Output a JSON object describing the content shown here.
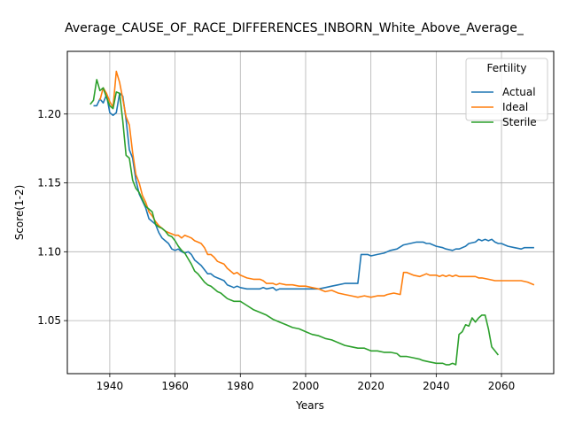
{
  "chart_data": {
    "type": "line",
    "title": "Average_CAUSE_OF_RACE_DIFFERENCES_INBORN_White_Above_Average_",
    "xlabel": "Years",
    "ylabel": "Score(1-2)",
    "xlim": [
      1927,
      2076
    ],
    "ylim": [
      1.0115,
      1.2455
    ],
    "xticks": [
      1940,
      1960,
      1980,
      2000,
      2020,
      2040,
      2060
    ],
    "yticks": [
      1.05,
      1.1,
      1.15,
      1.2
    ],
    "xtick_labels": [
      "1940",
      "1960",
      "1980",
      "2000",
      "2020",
      "2040",
      "2060"
    ],
    "ytick_labels": [
      "1.05",
      "1.10",
      "1.15",
      "1.20"
    ],
    "grid": true,
    "legend": {
      "title": "Fertility",
      "placement": "top-right"
    },
    "series": [
      {
        "name": "Actual",
        "color": "#1f77b4",
        "points": [
          [
            1935,
            1.206
          ],
          [
            1936,
            1.206
          ],
          [
            1937,
            1.211
          ],
          [
            1938,
            1.208
          ],
          [
            1939,
            1.214
          ],
          [
            1940,
            1.201
          ],
          [
            1941,
            1.199
          ],
          [
            1942,
            1.201
          ],
          [
            1943,
            1.215
          ],
          [
            1944,
            1.213
          ],
          [
            1945,
            1.196
          ],
          [
            1946,
            1.174
          ],
          [
            1947,
            1.168
          ],
          [
            1948,
            1.152
          ],
          [
            1949,
            1.142
          ],
          [
            1950,
            1.137
          ],
          [
            1951,
            1.132
          ],
          [
            1952,
            1.124
          ],
          [
            1953,
            1.122
          ],
          [
            1954,
            1.12
          ],
          [
            1955,
            1.114
          ],
          [
            1956,
            1.11
          ],
          [
            1957,
            1.108
          ],
          [
            1958,
            1.106
          ],
          [
            1959,
            1.102
          ],
          [
            1960,
            1.101
          ],
          [
            1961,
            1.102
          ],
          [
            1962,
            1.1
          ],
          [
            1963,
            1.099
          ],
          [
            1964,
            1.1
          ],
          [
            1965,
            1.098
          ],
          [
            1966,
            1.094
          ],
          [
            1967,
            1.092
          ],
          [
            1968,
            1.09
          ],
          [
            1969,
            1.087
          ],
          [
            1970,
            1.084
          ],
          [
            1971,
            1.084
          ],
          [
            1972,
            1.082
          ],
          [
            1973,
            1.081
          ],
          [
            1974,
            1.08
          ],
          [
            1975,
            1.079
          ],
          [
            1976,
            1.076
          ],
          [
            1977,
            1.075
          ],
          [
            1978,
            1.074
          ],
          [
            1979,
            1.075
          ],
          [
            1980,
            1.074
          ],
          [
            1982,
            1.073
          ],
          [
            1984,
            1.073
          ],
          [
            1986,
            1.073
          ],
          [
            1987,
            1.074
          ],
          [
            1988,
            1.073
          ],
          [
            1990,
            1.074
          ],
          [
            1991,
            1.072
          ],
          [
            1992,
            1.073
          ],
          [
            1994,
            1.073
          ],
          [
            1996,
            1.073
          ],
          [
            1998,
            1.073
          ],
          [
            2000,
            1.073
          ],
          [
            2002,
            1.073
          ],
          [
            2004,
            1.073
          ],
          [
            2006,
            1.074
          ],
          [
            2008,
            1.075
          ],
          [
            2010,
            1.076
          ],
          [
            2012,
            1.077
          ],
          [
            2014,
            1.077
          ],
          [
            2016,
            1.077
          ],
          [
            2017,
            1.098
          ],
          [
            2019,
            1.098
          ],
          [
            2020,
            1.097
          ],
          [
            2022,
            1.098
          ],
          [
            2024,
            1.099
          ],
          [
            2026,
            1.101
          ],
          [
            2028,
            1.102
          ],
          [
            2030,
            1.105
          ],
          [
            2032,
            1.106
          ],
          [
            2034,
            1.107
          ],
          [
            2036,
            1.107
          ],
          [
            2037,
            1.106
          ],
          [
            2038,
            1.106
          ],
          [
            2040,
            1.104
          ],
          [
            2042,
            1.103
          ],
          [
            2043,
            1.102
          ],
          [
            2045,
            1.101
          ],
          [
            2046,
            1.102
          ],
          [
            2047,
            1.102
          ],
          [
            2048,
            1.103
          ],
          [
            2049,
            1.104
          ],
          [
            2050,
            1.106
          ],
          [
            2052,
            1.107
          ],
          [
            2053,
            1.109
          ],
          [
            2054,
            1.108
          ],
          [
            2055,
            1.109
          ],
          [
            2056,
            1.108
          ],
          [
            2057,
            1.109
          ],
          [
            2058,
            1.107
          ],
          [
            2059,
            1.106
          ],
          [
            2060,
            1.106
          ],
          [
            2061,
            1.105
          ],
          [
            2062,
            1.104
          ],
          [
            2064,
            1.103
          ],
          [
            2066,
            1.102
          ],
          [
            2067,
            1.103
          ],
          [
            2068,
            1.103
          ],
          [
            2070,
            1.103
          ]
        ]
      },
      {
        "name": "Ideal",
        "color": "#ff7f0e",
        "points": [
          [
            1937,
            1.21
          ],
          [
            1938,
            1.219
          ],
          [
            1939,
            1.215
          ],
          [
            1940,
            1.209
          ],
          [
            1941,
            1.205
          ],
          [
            1942,
            1.231
          ],
          [
            1943,
            1.223
          ],
          [
            1944,
            1.211
          ],
          [
            1945,
            1.198
          ],
          [
            1946,
            1.192
          ],
          [
            1947,
            1.172
          ],
          [
            1948,
            1.156
          ],
          [
            1949,
            1.15
          ],
          [
            1950,
            1.141
          ],
          [
            1951,
            1.136
          ],
          [
            1952,
            1.129
          ],
          [
            1953,
            1.126
          ],
          [
            1954,
            1.122
          ],
          [
            1955,
            1.119
          ],
          [
            1956,
            1.117
          ],
          [
            1957,
            1.115
          ],
          [
            1958,
            1.114
          ],
          [
            1959,
            1.113
          ],
          [
            1960,
            1.112
          ],
          [
            1961,
            1.112
          ],
          [
            1962,
            1.11
          ],
          [
            1963,
            1.112
          ],
          [
            1964,
            1.111
          ],
          [
            1965,
            1.11
          ],
          [
            1966,
            1.108
          ],
          [
            1967,
            1.107
          ],
          [
            1968,
            1.106
          ],
          [
            1969,
            1.103
          ],
          [
            1970,
            1.098
          ],
          [
            1971,
            1.098
          ],
          [
            1972,
            1.096
          ],
          [
            1973,
            1.093
          ],
          [
            1974,
            1.092
          ],
          [
            1975,
            1.091
          ],
          [
            1976,
            1.088
          ],
          [
            1977,
            1.086
          ],
          [
            1978,
            1.084
          ],
          [
            1979,
            1.085
          ],
          [
            1980,
            1.083
          ],
          [
            1982,
            1.081
          ],
          [
            1984,
            1.08
          ],
          [
            1986,
            1.08
          ],
          [
            1987,
            1.079
          ],
          [
            1988,
            1.077
          ],
          [
            1990,
            1.077
          ],
          [
            1991,
            1.076
          ],
          [
            1992,
            1.077
          ],
          [
            1994,
            1.076
          ],
          [
            1996,
            1.076
          ],
          [
            1998,
            1.075
          ],
          [
            2000,
            1.075
          ],
          [
            2002,
            1.074
          ],
          [
            2004,
            1.073
          ],
          [
            2006,
            1.071
          ],
          [
            2008,
            1.072
          ],
          [
            2010,
            1.07
          ],
          [
            2012,
            1.069
          ],
          [
            2014,
            1.068
          ],
          [
            2016,
            1.067
          ],
          [
            2018,
            1.068
          ],
          [
            2020,
            1.067
          ],
          [
            2022,
            1.068
          ],
          [
            2024,
            1.068
          ],
          [
            2025,
            1.069
          ],
          [
            2027,
            1.07
          ],
          [
            2029,
            1.069
          ],
          [
            2030,
            1.085
          ],
          [
            2031,
            1.085
          ],
          [
            2033,
            1.083
          ],
          [
            2035,
            1.082
          ],
          [
            2036,
            1.083
          ],
          [
            2037,
            1.084
          ],
          [
            2038,
            1.083
          ],
          [
            2039,
            1.083
          ],
          [
            2040,
            1.083
          ],
          [
            2041,
            1.082
          ],
          [
            2042,
            1.083
          ],
          [
            2043,
            1.082
          ],
          [
            2044,
            1.083
          ],
          [
            2045,
            1.082
          ],
          [
            2046,
            1.083
          ],
          [
            2047,
            1.082
          ],
          [
            2048,
            1.082
          ],
          [
            2050,
            1.082
          ],
          [
            2052,
            1.082
          ],
          [
            2053,
            1.081
          ],
          [
            2054,
            1.081
          ],
          [
            2056,
            1.08
          ],
          [
            2058,
            1.079
          ],
          [
            2060,
            1.079
          ],
          [
            2062,
            1.079
          ],
          [
            2064,
            1.079
          ],
          [
            2066,
            1.079
          ],
          [
            2068,
            1.078
          ],
          [
            2070,
            1.076
          ]
        ]
      },
      {
        "name": "Sterile",
        "color": "#2ca02c",
        "points": [
          [
            1934,
            1.207
          ],
          [
            1935,
            1.21
          ],
          [
            1936,
            1.225
          ],
          [
            1937,
            1.217
          ],
          [
            1938,
            1.219
          ],
          [
            1939,
            1.212
          ],
          [
            1940,
            1.206
          ],
          [
            1941,
            1.204
          ],
          [
            1942,
            1.216
          ],
          [
            1943,
            1.215
          ],
          [
            1944,
            1.195
          ],
          [
            1945,
            1.17
          ],
          [
            1946,
            1.168
          ],
          [
            1947,
            1.152
          ],
          [
            1948,
            1.146
          ],
          [
            1949,
            1.143
          ],
          [
            1950,
            1.138
          ],
          [
            1951,
            1.133
          ],
          [
            1952,
            1.131
          ],
          [
            1953,
            1.129
          ],
          [
            1954,
            1.12
          ],
          [
            1955,
            1.118
          ],
          [
            1956,
            1.117
          ],
          [
            1957,
            1.115
          ],
          [
            1958,
            1.112
          ],
          [
            1959,
            1.111
          ],
          [
            1960,
            1.108
          ],
          [
            1961,
            1.104
          ],
          [
            1962,
            1.101
          ],
          [
            1963,
            1.099
          ],
          [
            1964,
            1.095
          ],
          [
            1965,
            1.091
          ],
          [
            1966,
            1.086
          ],
          [
            1967,
            1.084
          ],
          [
            1968,
            1.081
          ],
          [
            1969,
            1.078
          ],
          [
            1970,
            1.076
          ],
          [
            1971,
            1.075
          ],
          [
            1972,
            1.073
          ],
          [
            1973,
            1.071
          ],
          [
            1974,
            1.07
          ],
          [
            1975,
            1.068
          ],
          [
            1976,
            1.066
          ],
          [
            1977,
            1.065
          ],
          [
            1978,
            1.064
          ],
          [
            1980,
            1.064
          ],
          [
            1982,
            1.061
          ],
          [
            1984,
            1.058
          ],
          [
            1986,
            1.056
          ],
          [
            1988,
            1.054
          ],
          [
            1990,
            1.051
          ],
          [
            1992,
            1.049
          ],
          [
            1994,
            1.047
          ],
          [
            1996,
            1.045
          ],
          [
            1998,
            1.044
          ],
          [
            2000,
            1.042
          ],
          [
            2002,
            1.04
          ],
          [
            2004,
            1.039
          ],
          [
            2006,
            1.037
          ],
          [
            2008,
            1.036
          ],
          [
            2010,
            1.034
          ],
          [
            2012,
            1.032
          ],
          [
            2014,
            1.031
          ],
          [
            2016,
            1.03
          ],
          [
            2018,
            1.03
          ],
          [
            2020,
            1.028
          ],
          [
            2022,
            1.028
          ],
          [
            2024,
            1.027
          ],
          [
            2026,
            1.027
          ],
          [
            2028,
            1.026
          ],
          [
            2029,
            1.024
          ],
          [
            2031,
            1.024
          ],
          [
            2033,
            1.023
          ],
          [
            2035,
            1.022
          ],
          [
            2036,
            1.021
          ],
          [
            2038,
            1.02
          ],
          [
            2040,
            1.019
          ],
          [
            2042,
            1.019
          ],
          [
            2043,
            1.018
          ],
          [
            2044,
            1.018
          ],
          [
            2045,
            1.019
          ],
          [
            2046,
            1.018
          ],
          [
            2047,
            1.04
          ],
          [
            2048,
            1.042
          ],
          [
            2049,
            1.047
          ],
          [
            2050,
            1.046
          ],
          [
            2051,
            1.052
          ],
          [
            2052,
            1.049
          ],
          [
            2053,
            1.052
          ],
          [
            2054,
            1.054
          ],
          [
            2055,
            1.054
          ],
          [
            2056,
            1.044
          ],
          [
            2057,
            1.031
          ],
          [
            2058,
            1.028
          ],
          [
            2059,
            1.025
          ]
        ]
      }
    ]
  }
}
